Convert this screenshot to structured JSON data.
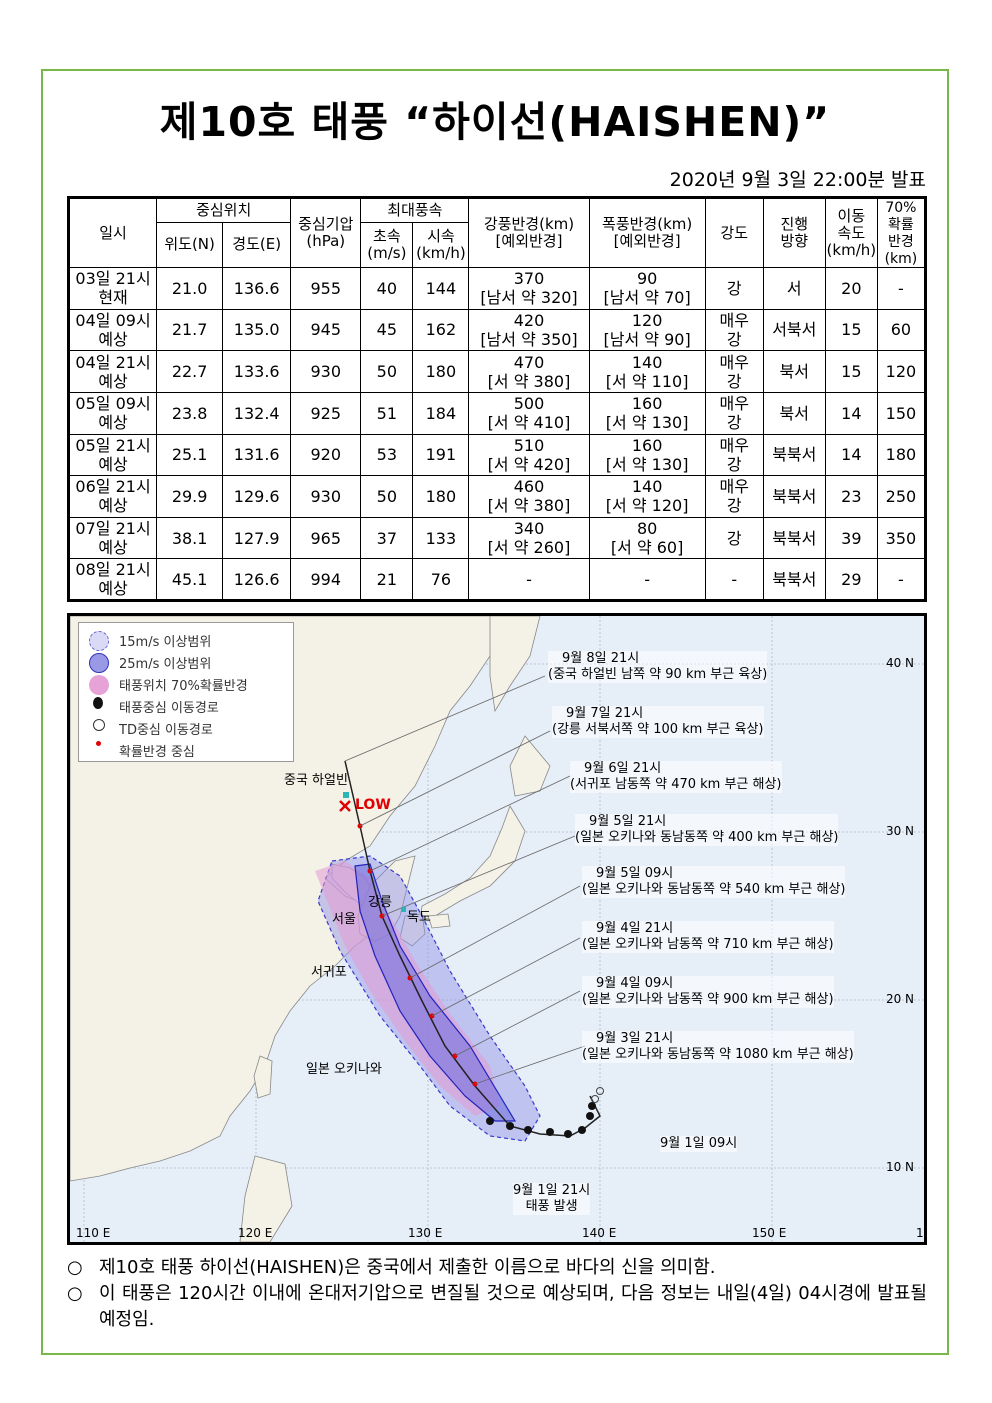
{
  "title": "제10호 태풍 “하이선(HAISHEN)”",
  "issued": "2020년 9월 3일 22:00분 발표",
  "table": {
    "headers": {
      "time": "일시",
      "center": "중심위치",
      "lat": "위도(N)",
      "lon": "경도(E)",
      "pressure": "중심기압\n(hPa)",
      "maxwind": "최대풍속",
      "ms": "초속\n(m/s)",
      "kmh": "시속\n(km/h)",
      "gale": "강풍반경(km)\n[예외반경]",
      "storm": "폭풍반경(km)\n[예외반경]",
      "intensity": "강도",
      "direction": "진행\n방향",
      "speed": "이동\n속도\n(km/h)",
      "prob": "70%\n확률\n반경\n(km)"
    },
    "rows": [
      {
        "time": "03일 21시\n현재",
        "lat": "21.0",
        "lon": "136.6",
        "pressure": "955",
        "ms": "40",
        "kmh": "144",
        "gale": "370\n[남서 약 320]",
        "storm": "90\n[남서 약 70]",
        "intensity": "강",
        "direction": "서",
        "speed": "20",
        "prob": "-"
      },
      {
        "time": "04일 09시\n예상",
        "lat": "21.7",
        "lon": "135.0",
        "pressure": "945",
        "ms": "45",
        "kmh": "162",
        "gale": "420\n[남서 약 350]",
        "storm": "120\n[남서 약 90]",
        "intensity": "매우\n강",
        "direction": "서북서",
        "speed": "15",
        "prob": "60"
      },
      {
        "time": "04일 21시\n예상",
        "lat": "22.7",
        "lon": "133.6",
        "pressure": "930",
        "ms": "50",
        "kmh": "180",
        "gale": "470\n[서 약 380]",
        "storm": "140\n[서 약 110]",
        "intensity": "매우\n강",
        "direction": "북서",
        "speed": "15",
        "prob": "120"
      },
      {
        "time": "05일 09시\n예상",
        "lat": "23.8",
        "lon": "132.4",
        "pressure": "925",
        "ms": "51",
        "kmh": "184",
        "gale": "500\n[서 약 410]",
        "storm": "160\n[서 약 130]",
        "intensity": "매우\n강",
        "direction": "북서",
        "speed": "14",
        "prob": "150"
      },
      {
        "time": "05일 21시\n예상",
        "lat": "25.1",
        "lon": "131.6",
        "pressure": "920",
        "ms": "53",
        "kmh": "191",
        "gale": "510\n[서 약 420]",
        "storm": "160\n[서 약 130]",
        "intensity": "매우\n강",
        "direction": "북북서",
        "speed": "14",
        "prob": "180"
      },
      {
        "time": "06일 21시\n예상",
        "lat": "29.9",
        "lon": "129.6",
        "pressure": "930",
        "ms": "50",
        "kmh": "180",
        "gale": "460\n[서 약 380]",
        "storm": "140\n[서 약 120]",
        "intensity": "매우\n강",
        "direction": "북북서",
        "speed": "23",
        "prob": "250"
      },
      {
        "time": "07일 21시\n예상",
        "lat": "38.1",
        "lon": "127.9",
        "pressure": "965",
        "ms": "37",
        "kmh": "133",
        "gale": "340\n[서 약 260]",
        "storm": "80\n[서 약 60]",
        "intensity": "강",
        "direction": "북북서",
        "speed": "39",
        "prob": "350"
      },
      {
        "time": "08일 21시\n예상",
        "lat": "45.1",
        "lon": "126.6",
        "pressure": "994",
        "ms": "21",
        "kmh": "76",
        "gale": "-",
        "storm": "-",
        "intensity": "-",
        "direction": "북북서",
        "speed": "29",
        "prob": "-"
      }
    ]
  },
  "map": {
    "legend": [
      {
        "icon": "dashed-circle-icon",
        "label": "15m/s 이상범위"
      },
      {
        "icon": "solid-circle-icon",
        "label": "25m/s 이상범위"
      },
      {
        "icon": "pink-area-icon",
        "label": "태풍위치 70%확률반경"
      },
      {
        "icon": "typhoon-symbol-icon",
        "label": "태풍중심 이동경로"
      },
      {
        "icon": "td-cross-icon",
        "label": "TD중심 이동경로"
      },
      {
        "icon": "red-dot-icon",
        "label": "확률반경 중심"
      }
    ],
    "annotations": [
      {
        "date": "9월 8일 21시",
        "desc": "(중국 하얼빈 남쪽 약 90 km 부근 육상)"
      },
      {
        "date": "9월 7일 21시",
        "desc": "(강릉 서북서쪽 약 100 km 부근 육상)"
      },
      {
        "date": "9월 6일 21시",
        "desc": "(서귀포 남동쪽 약 470 km 부근 해상)"
      },
      {
        "date": "9월 5일 21시",
        "desc": "(일본 오키나와 동남동쪽 약 400 km 부근 해상)"
      },
      {
        "date": "9월 5일 09시",
        "desc": "(일본 오키나와 동남동쪽 약 540 km 부근 해상)"
      },
      {
        "date": "9월 4일 21시",
        "desc": "(일본 오키나와 남동쪽 약 710 km 부근 해상)"
      },
      {
        "date": "9월 4일 09시",
        "desc": "(일본 오키나와 남동쪽 약 900 km 부근 해상)"
      },
      {
        "date": "9월 3일 21시",
        "desc": "(일본 오키나와 동남동쪽 약 1080 km 부근 해상)"
      }
    ],
    "past": {
      "sep1_09": "9월 1일 09시",
      "sep1_21": "9월 1일 21시",
      "genesis": "태풍 발생"
    },
    "places": {
      "harbin": "중국 하얼빈",
      "low": "LOW",
      "gangneung": "강릉",
      "seoul": "서울",
      "dokdo": "독도",
      "seogwipo": "서귀포",
      "okinawa": "일본 오키나와"
    },
    "lat_labels": [
      "40 N",
      "30 N",
      "20 N",
      "10 N"
    ],
    "lon_labels": [
      "110 E",
      "120 E",
      "130 E",
      "140 E",
      "150 E",
      "1"
    ]
  },
  "notes": [
    {
      "bullet": "○",
      "text": "제10호 태풍 하이선(HAISHEN)은 중국에서 제출한 이름으로 바다의 신을 의미함."
    },
    {
      "bullet": "○",
      "text": "이 태풍은 120시간 이내에 온대저기압으로 변질될 것으로 예상되며, 다음 정보는 내일(4일) 04시경에 발표될 예정임."
    }
  ]
}
